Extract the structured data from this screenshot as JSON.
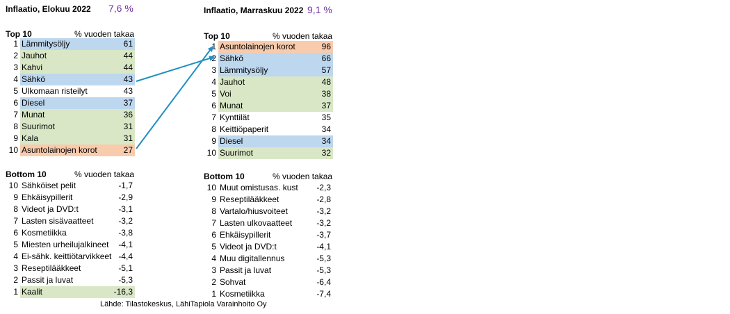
{
  "left": {
    "title": "Inflaatio, Elokuu 2022",
    "inflation": "7,6 %",
    "top_title": "Top 10",
    "top_col": "% vuoden takaa",
    "top": [
      {
        "rank": "1",
        "label": "Lämmitysöljy",
        "value": "61",
        "color": "blue"
      },
      {
        "rank": "2",
        "label": "Jauhot",
        "value": "44",
        "color": "green"
      },
      {
        "rank": "3",
        "label": "Kahvi",
        "value": "44",
        "color": "green"
      },
      {
        "rank": "4",
        "label": "Sähkö",
        "value": "43",
        "color": "blue"
      },
      {
        "rank": "5",
        "label": "Ulkomaan risteilyt",
        "value": "43",
        "color": "none"
      },
      {
        "rank": "6",
        "label": "Diesel",
        "value": "37",
        "color": "blue"
      },
      {
        "rank": "7",
        "label": "Munat",
        "value": "36",
        "color": "green"
      },
      {
        "rank": "8",
        "label": "Suurimot",
        "value": "31",
        "color": "green"
      },
      {
        "rank": "9",
        "label": "Kala",
        "value": "31",
        "color": "green"
      },
      {
        "rank": "10",
        "label": "Asuntolainojen korot",
        "value": "27",
        "color": "orange"
      }
    ],
    "bottom_title": "Bottom 10",
    "bottom_col": "% vuoden takaa",
    "bottom": [
      {
        "rank": "10",
        "label": "Sähköiset pelit",
        "value": "-1,7",
        "color": "none"
      },
      {
        "rank": "9",
        "label": "Ehkäisypillerit",
        "value": "-2,9",
        "color": "none"
      },
      {
        "rank": "8",
        "label": "Videot ja DVD:t",
        "value": "-3,1",
        "color": "none"
      },
      {
        "rank": "7",
        "label": "Lasten sisävaatteet",
        "value": "-3,2",
        "color": "none"
      },
      {
        "rank": "6",
        "label": "Kosmetiikka",
        "value": "-3,8",
        "color": "none"
      },
      {
        "rank": "5",
        "label": "Miesten urheilujalkineet",
        "value": "-4,1",
        "color": "none"
      },
      {
        "rank": "4",
        "label": "Ei-sähk. keittiötarvikkeet",
        "value": "-4,4",
        "color": "none"
      },
      {
        "rank": "3",
        "label": "Reseptilääkkeet",
        "value": "-5,1",
        "color": "none"
      },
      {
        "rank": "2",
        "label": "Passit ja luvat",
        "value": "-5,3",
        "color": "none"
      },
      {
        "rank": "1",
        "label": "Kaalit",
        "value": "-16,3",
        "color": "green"
      }
    ]
  },
  "right": {
    "title": "Inflaatio, Marraskuu 2022",
    "inflation": "9,1 %",
    "top_title": "Top 10",
    "top_col": "% vuoden takaa",
    "top": [
      {
        "rank": "1",
        "label": "Asuntolainojen korot",
        "value": "96",
        "color": "orange"
      },
      {
        "rank": "2",
        "label": "Sähkö",
        "value": "66",
        "color": "blue"
      },
      {
        "rank": "3",
        "label": "Lämmitysöljy",
        "value": "57",
        "color": "blue"
      },
      {
        "rank": "4",
        "label": "Jauhot",
        "value": "48",
        "color": "green"
      },
      {
        "rank": "5",
        "label": "Voi",
        "value": "38",
        "color": "green"
      },
      {
        "rank": "6",
        "label": "Munat",
        "value": "37",
        "color": "green"
      },
      {
        "rank": "7",
        "label": "Kynttilät",
        "value": "35",
        "color": "none"
      },
      {
        "rank": "8",
        "label": "Keittiöpaperit",
        "value": "34",
        "color": "none"
      },
      {
        "rank": "9",
        "label": "Diesel",
        "value": "34",
        "color": "blue"
      },
      {
        "rank": "10",
        "label": "Suurimot",
        "value": "32",
        "color": "green"
      }
    ],
    "bottom_title": "Bottom 10",
    "bottom_col": "% vuoden takaa",
    "bottom": [
      {
        "rank": "10",
        "label": "Muut omistusas. kust",
        "value": "-2,3",
        "color": "none"
      },
      {
        "rank": "9",
        "label": "Reseptilääkkeet",
        "value": "-2,8",
        "color": "none"
      },
      {
        "rank": "8",
        "label": "Vartalo/hiusvoiteet",
        "value": "-3,2",
        "color": "none"
      },
      {
        "rank": "7",
        "label": "Lasten ulkovaatteet",
        "value": "-3,2",
        "color": "none"
      },
      {
        "rank": "6",
        "label": "Ehkäisypillerit",
        "value": "-3,7",
        "color": "none"
      },
      {
        "rank": "5",
        "label": "Videot ja DVD:t",
        "value": "-4,1",
        "color": "none"
      },
      {
        "rank": "4",
        "label": "Muu digitallennus",
        "value": "-5,3",
        "color": "none"
      },
      {
        "rank": "3",
        "label": "Passit ja luvat",
        "value": "-5,3",
        "color": "none"
      },
      {
        "rank": "2",
        "label": "Sohvat",
        "value": "-6,4",
        "color": "none"
      },
      {
        "rank": "1",
        "label": "Kosmetiikka",
        "value": "-7,4",
        "color": "none"
      }
    ]
  },
  "source": "Lähde: Tilastokeskus, LähiTapiola Varainhoito Oy",
  "arrow_color": "#1f8fc4",
  "chart_data": {
    "type": "table",
    "title_left": "Inflaatio, Elokuu 2022",
    "title_right": "Inflaatio, Marraskuu 2022",
    "unit": "% vuoden takaa"
  }
}
